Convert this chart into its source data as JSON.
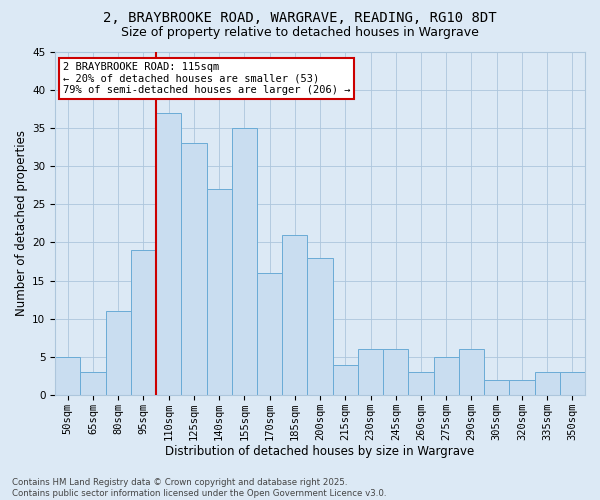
{
  "title_line1": "2, BRAYBROOKE ROAD, WARGRAVE, READING, RG10 8DT",
  "title_line2": "Size of property relative to detached houses in Wargrave",
  "xlabel": "Distribution of detached houses by size in Wargrave",
  "ylabel": "Number of detached properties",
  "categories": [
    "50sqm",
    "65sqm",
    "80sqm",
    "95sqm",
    "110sqm",
    "125sqm",
    "140sqm",
    "155sqm",
    "170sqm",
    "185sqm",
    "200sqm",
    "215sqm",
    "230sqm",
    "245sqm",
    "260sqm",
    "275sqm",
    "290sqm",
    "305sqm",
    "320sqm",
    "335sqm",
    "350sqm"
  ],
  "values": [
    5,
    3,
    11,
    19,
    37,
    33,
    27,
    35,
    16,
    21,
    18,
    4,
    6,
    6,
    3,
    5,
    6,
    2,
    2,
    3,
    3
  ],
  "bar_color": "#c9ddf0",
  "bar_edge_color": "#6aabd6",
  "property_bin_index": 4,
  "red_line_color": "#cc0000",
  "annotation_text": "2 BRAYBROOKE ROAD: 115sqm\n← 20% of detached houses are smaller (53)\n79% of semi-detached houses are larger (206) →",
  "annotation_box_color": "#ffffff",
  "annotation_box_edge_color": "#cc0000",
  "ylim": [
    0,
    45
  ],
  "yticks": [
    0,
    5,
    10,
    15,
    20,
    25,
    30,
    35,
    40,
    45
  ],
  "grid_color": "#adc6dc",
  "background_color": "#dce9f5",
  "footer_text": "Contains HM Land Registry data © Crown copyright and database right 2025.\nContains public sector information licensed under the Open Government Licence v3.0.",
  "title_fontsize": 10,
  "subtitle_fontsize": 9,
  "axis_label_fontsize": 8.5,
  "tick_fontsize": 7.5,
  "annotation_fontsize": 7.5,
  "footer_fontsize": 6.2
}
